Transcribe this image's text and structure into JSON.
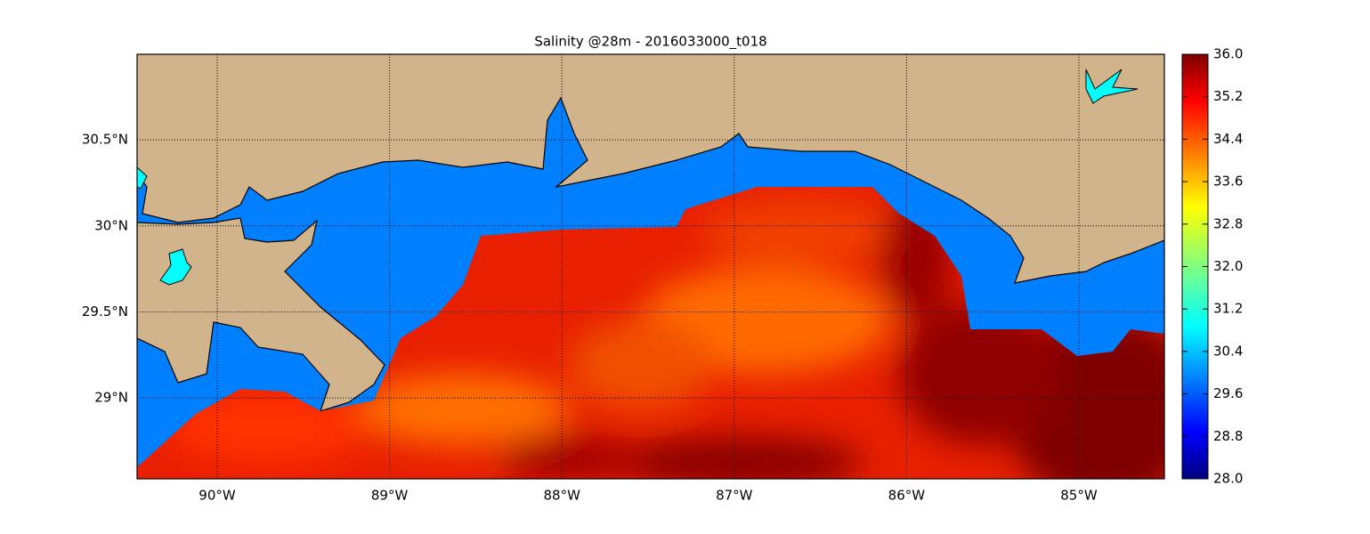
{
  "chart_data": {
    "type": "map",
    "title": "Salinity @28m - 2016033000_t018",
    "xlim": [
      -90.465,
      -84.504
    ],
    "ylim": [
      28.53,
      30.997
    ],
    "xticks": [
      {
        "value": -90,
        "label": "90°W"
      },
      {
        "value": -89,
        "label": "89°W"
      },
      {
        "value": -88,
        "label": "88°W"
      },
      {
        "value": -87,
        "label": "87°W"
      },
      {
        "value": -86,
        "label": "86°W"
      },
      {
        "value": -85,
        "label": "85°W"
      }
    ],
    "yticks": [
      {
        "value": 29,
        "label": "29°N"
      },
      {
        "value": 29.5,
        "label": "29.5°N"
      },
      {
        "value": 30,
        "label": "30°N"
      },
      {
        "value": 30.5,
        "label": "30.5°N"
      }
    ],
    "grid": true,
    "clim": [
      28,
      36
    ],
    "cticks": [
      {
        "value": 28,
        "label": "28.0"
      },
      {
        "value": 28.8,
        "label": "28.8"
      },
      {
        "value": 29.6,
        "label": "29.6"
      },
      {
        "value": 30.4,
        "label": "30.4"
      },
      {
        "value": 31.2,
        "label": "31.2"
      },
      {
        "value": 32,
        "label": "32.0"
      },
      {
        "value": 32.8,
        "label": "32.8"
      },
      {
        "value": 33.6,
        "label": "33.6"
      },
      {
        "value": 34.4,
        "label": "34.4"
      },
      {
        "value": 35.2,
        "label": "35.2"
      },
      {
        "value": 36,
        "label": "36.0"
      }
    ]
  }
}
